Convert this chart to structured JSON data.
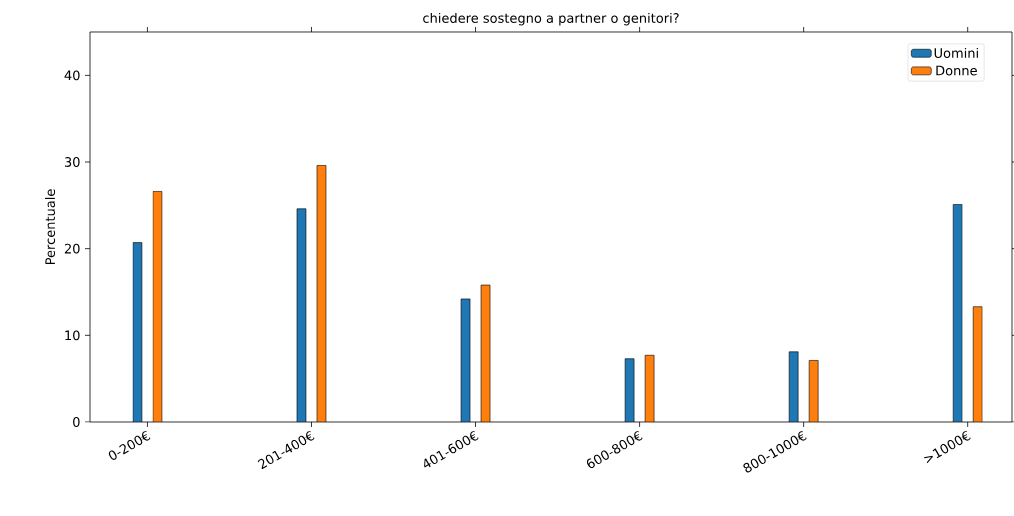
{
  "chart_data": {
    "type": "bar",
    "title": "chiedere sostegno a partner o genitori?",
    "ylabel": "Percentuale",
    "categories": [
      "0-200€",
      "201-400€",
      "401-600€",
      "600-800€",
      "800-1000€",
      ">1000€"
    ],
    "series": [
      {
        "name": "Uomini",
        "color": "#1f77b4",
        "values": [
          20.7,
          24.6,
          14.2,
          7.3,
          8.1,
          25.1
        ]
      },
      {
        "name": "Donne",
        "color": "#ff7f0e",
        "values": [
          26.6,
          29.6,
          15.8,
          7.7,
          7.1,
          13.3
        ]
      }
    ],
    "ylim": [
      0,
      45
    ],
    "yticks": [
      0,
      10,
      20,
      30,
      40
    ],
    "legend": "top right",
    "grid": false
  }
}
